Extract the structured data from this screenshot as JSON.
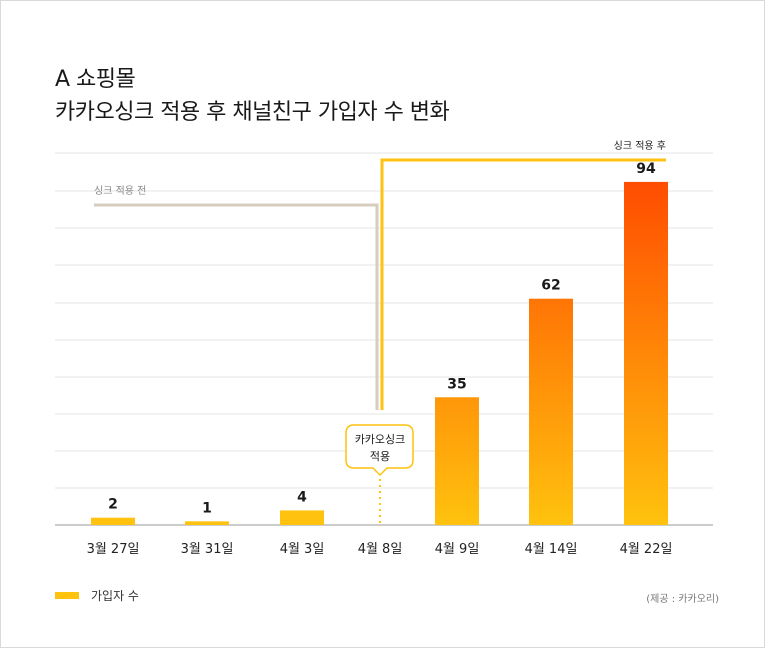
{
  "title_line1": "A 쇼핑몰",
  "title_line2": "카카오싱크 적용 후 채널친구 가입자 수 변화",
  "annotations": {
    "before": "싱크 적용 전",
    "after": "싱크 적용 후",
    "callout_line1": "카카오싱크",
    "callout_line2": "적용"
  },
  "legend_label": "가입자 수",
  "source": "(제공 : 카카오리)",
  "colors": {
    "bar_light": "#ffc20e",
    "bar_dark": "#ff4500",
    "before_line": "#d6cdbf",
    "after_line": "#ffc20e",
    "grid": "#e4e4e4"
  },
  "chart_data": {
    "type": "bar",
    "categories": [
      "3월 27일",
      "3월 31일",
      "4월 3일",
      "4월 8일",
      "4월 9일",
      "4월 14일",
      "4월 22일"
    ],
    "values": [
      2,
      1,
      4,
      null,
      35,
      62,
      94
    ],
    "value_labels": [
      "2",
      "1",
      "4",
      "",
      "35",
      "62",
      "94"
    ],
    "series": [
      {
        "name": "가입자 수",
        "values": [
          2,
          1,
          4,
          null,
          35,
          62,
          94
        ]
      }
    ],
    "ylim": [
      0,
      100
    ],
    "grid": true,
    "legend": "bottom-left"
  }
}
